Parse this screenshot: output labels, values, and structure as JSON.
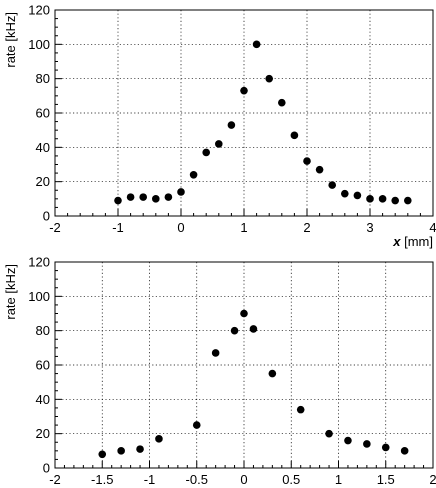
{
  "chart_data": [
    {
      "type": "scatter",
      "title": "",
      "xlabel_var": "x",
      "xlabel_unit": " [mm]",
      "ylabel": "rate [kHz]",
      "xlim": [
        -2,
        4
      ],
      "ylim": [
        0,
        120
      ],
      "xticks": [
        "-2",
        "-1",
        "0",
        "1",
        "2",
        "3",
        "4"
      ],
      "yticks": [
        "0",
        "20",
        "40",
        "60",
        "80",
        "100",
        "120"
      ],
      "grid": true,
      "series": [
        {
          "x": [
            -1.0,
            -0.8,
            -0.6,
            -0.4,
            -0.2,
            0.0,
            0.2,
            0.4,
            0.6,
            0.8,
            1.0,
            1.2,
            1.4,
            1.6,
            1.8,
            2.0,
            2.2,
            2.4,
            2.6,
            2.8,
            3.0,
            3.2,
            3.4,
            3.6
          ],
          "y": [
            9,
            11,
            11,
            10,
            11,
            14,
            24,
            37,
            42,
            53,
            73,
            100,
            80,
            66,
            47,
            32,
            27,
            18,
            13,
            12,
            10,
            10,
            9,
            9
          ]
        }
      ]
    },
    {
      "type": "scatter",
      "title": "",
      "xlabel_var": "",
      "xlabel_unit": "",
      "ylabel": "rate [kHz]",
      "xlim": [
        -2,
        2
      ],
      "ylim": [
        0,
        120
      ],
      "xticks": [
        "-2",
        "-1.5",
        "-1",
        "-0.5",
        "0",
        "0.5",
        "1",
        "1.5",
        "2"
      ],
      "yticks": [
        "0",
        "20",
        "40",
        "60",
        "80",
        "100",
        "120"
      ],
      "grid": true,
      "series": [
        {
          "x": [
            -1.5,
            -1.3,
            -1.1,
            -0.9,
            -0.5,
            -0.3,
            -0.1,
            0.0,
            0.1,
            0.3,
            0.6,
            0.9,
            1.1,
            1.3,
            1.5,
            1.7
          ],
          "y": [
            8,
            10,
            11,
            17,
            25,
            67,
            80,
            90,
            81,
            55,
            34,
            20,
            16,
            14,
            12,
            10
          ]
        }
      ]
    }
  ]
}
